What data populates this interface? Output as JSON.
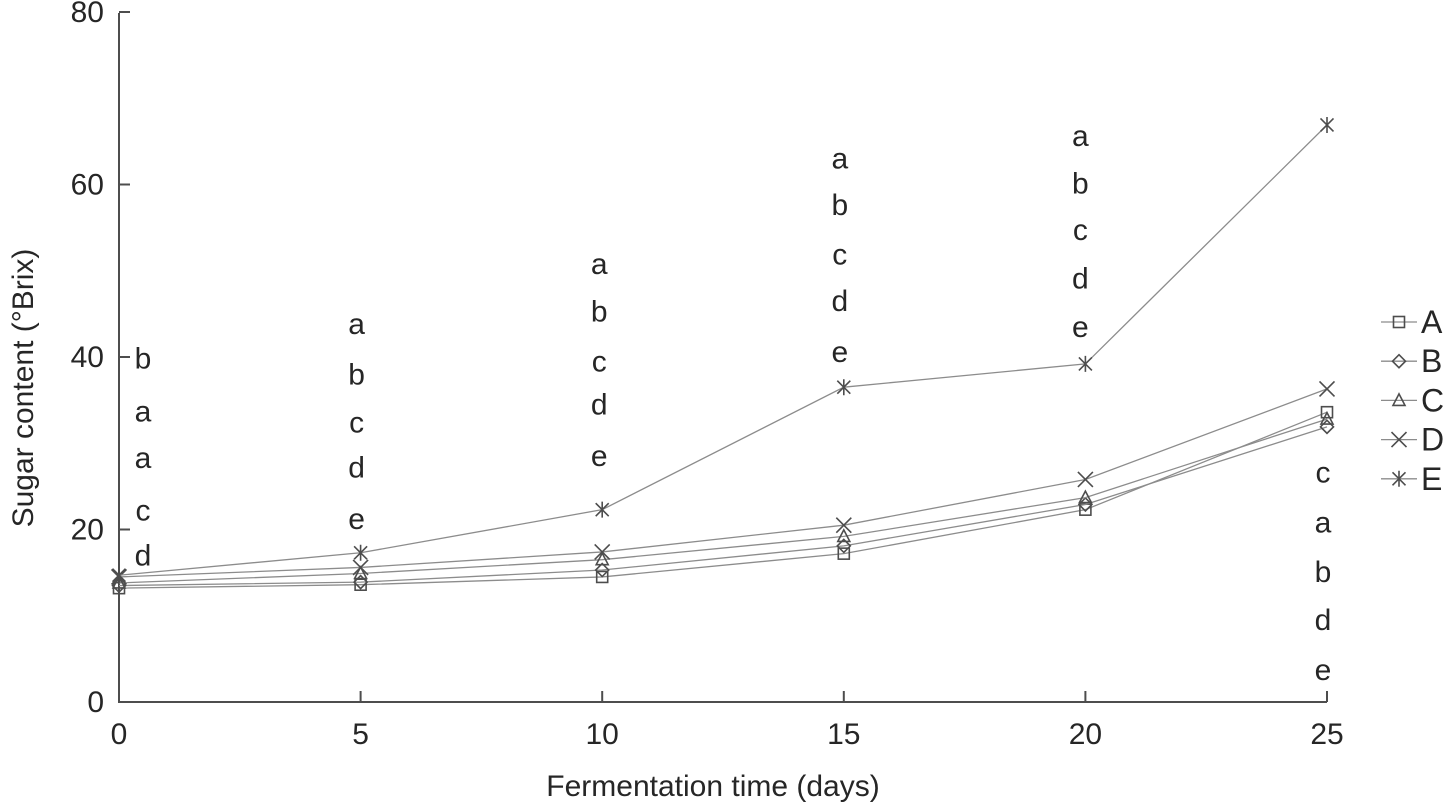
{
  "chart_data": {
    "type": "line",
    "title": "",
    "xlabel": "Fermentation time (days)",
    "ylabel": "Sugar content (°Brix)",
    "x": [
      0,
      5,
      10,
      15,
      20,
      25
    ],
    "xticks": [
      0,
      5,
      10,
      15,
      20,
      25
    ],
    "yticks": [
      0,
      20,
      40,
      60,
      80
    ],
    "xlim": [
      0,
      25
    ],
    "ylim": [
      0,
      80
    ],
    "grid": false,
    "legend_position": "right-outside",
    "series": [
      {
        "name": "A",
        "marker": "square",
        "values": [
          13.2,
          13.6,
          14.5,
          17.2,
          22.3,
          33.6
        ]
      },
      {
        "name": "B",
        "marker": "diamond",
        "values": [
          13.5,
          13.9,
          15.3,
          18.1,
          22.9,
          31.9
        ]
      },
      {
        "name": "C",
        "marker": "triangle",
        "values": [
          13.8,
          14.9,
          16.5,
          19.2,
          23.7,
          32.8
        ]
      },
      {
        "name": "D",
        "marker": "x",
        "values": [
          14.5,
          15.6,
          17.4,
          20.5,
          25.8,
          36.3
        ]
      },
      {
        "name": "E",
        "marker": "asterisk",
        "values": [
          14.7,
          17.3,
          22.3,
          36.5,
          39.2,
          66.9
        ]
      }
    ],
    "legend": [
      {
        "label": "A",
        "marker": "square"
      },
      {
        "label": "B",
        "marker": "diamond"
      },
      {
        "label": "C",
        "marker": "triangle"
      },
      {
        "label": "D",
        "marker": "x"
      },
      {
        "label": "E",
        "marker": "asterisk"
      }
    ],
    "annotations": [
      {
        "day": 0,
        "dx": 24,
        "letters": [
          {
            "text": "b",
            "value": 39.8
          },
          {
            "text": "a",
            "value": 33.7
          },
          {
            "text": "a",
            "value": 28.3
          },
          {
            "text": "c",
            "value": 22.2
          },
          {
            "text": "d",
            "value": 17.0
          }
        ]
      },
      {
        "day": 5,
        "dx": -4,
        "letters": [
          {
            "text": "a",
            "value": 43.8
          },
          {
            "text": "b",
            "value": 38.0
          },
          {
            "text": "c",
            "value": 32.4
          },
          {
            "text": "d",
            "value": 27.2
          },
          {
            "text": "e",
            "value": 21.2
          }
        ]
      },
      {
        "day": 10,
        "dx": -3,
        "letters": [
          {
            "text": "a",
            "value": 50.8
          },
          {
            "text": "b",
            "value": 45.3
          },
          {
            "text": "c",
            "value": 39.5
          },
          {
            "text": "d",
            "value": 34.5
          },
          {
            "text": "e",
            "value": 28.5
          }
        ]
      },
      {
        "day": 15,
        "dx": -4,
        "letters": [
          {
            "text": "a",
            "value": 63.0
          },
          {
            "text": "b",
            "value": 57.6
          },
          {
            "text": "c",
            "value": 51.9
          },
          {
            "text": "d",
            "value": 46.5
          },
          {
            "text": "e",
            "value": 40.6
          }
        ]
      },
      {
        "day": 20,
        "dx": -5,
        "letters": [
          {
            "text": "a",
            "value": 65.6
          },
          {
            "text": "b",
            "value": 60.1
          },
          {
            "text": "c",
            "value": 54.7
          },
          {
            "text": "d",
            "value": 49.1
          },
          {
            "text": "e",
            "value": 43.5
          }
        ]
      },
      {
        "day": 25,
        "dx": -4,
        "letters": [
          {
            "text": "c",
            "value": 26.6
          },
          {
            "text": "a",
            "value": 20.8
          },
          {
            "text": "b",
            "value": 15.1
          },
          {
            "text": "d",
            "value": 9.5
          },
          {
            "text": "e",
            "value": 3.7
          }
        ]
      }
    ],
    "colors": {
      "line": "#8c8c8c",
      "marker": "#4d4d4d",
      "axis": "#4d4d4d",
      "text": "#262626"
    }
  }
}
